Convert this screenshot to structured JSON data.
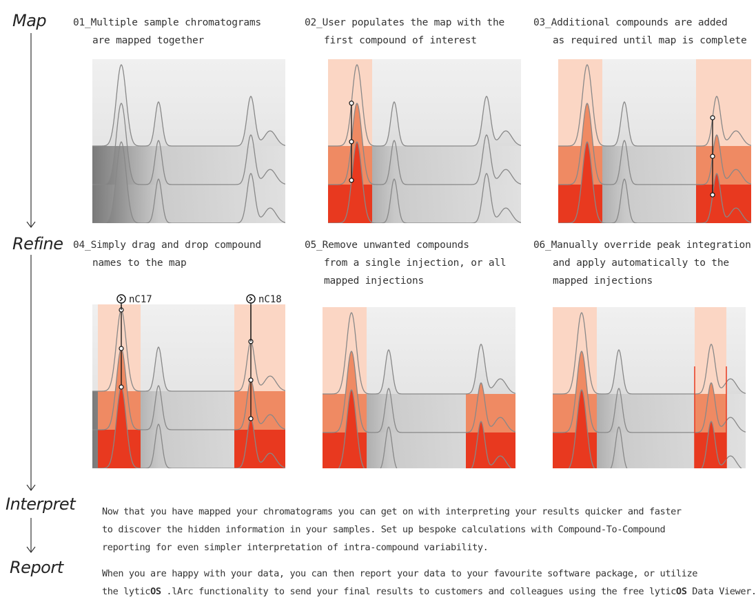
{
  "stages": {
    "map": "Map",
    "refine": "Refine",
    "interpret": "Interpret",
    "report": "Report"
  },
  "steps": [
    {
      "line1": "01_Multiple sample chromatograms",
      "line2": "are mapped together",
      "line3": ""
    },
    {
      "line1": "02_User populates the map with the",
      "line2": "first compound of interest",
      "line3": ""
    },
    {
      "line1": "03_Additional compounds are added",
      "line2": "as required until map is complete",
      "line3": ""
    },
    {
      "line1": "04_Simply drag and drop compound",
      "line2": "names to the map",
      "line3": ""
    },
    {
      "line1": "05_Remove unwanted compounds",
      "line2": "from a single injection, or all",
      "line3": "mapped injections"
    },
    {
      "line1": "06_Manually override peak integration",
      "line2": "and apply automatically to the",
      "line3": "mapped injections"
    }
  ],
  "compound_tags": {
    "left": "nC17",
    "right": "nC18"
  },
  "interpret_text": {
    "line1": "Now that you have mapped your chromatograms you can get on with interpreting your results quicker and faster",
    "line2": "to discover the hidden information in your samples. Set up bespoke calculations with Compound-To-Compound",
    "line3": "reporting for even simpler interpretation of intra-compound variability."
  },
  "report_text": {
    "line1": "When you are happy with your data, you can then report your data to your favourite software package, or utilize",
    "line2_a": "the lytic",
    "brand_bold": "OS",
    "line2_b": " .lArc functionality to send your final results to customers and colleagues using the free lytic",
    "line2_c": " Data Viewer."
  },
  "colors": {
    "panel_bg": "#e6e6e6",
    "band_grey_dark": "#8a8a8a",
    "pale_peach": "#fbd6c4",
    "mid_orange": "#ef8a63",
    "deep_red": "#e8391f",
    "outline": "#888888"
  }
}
